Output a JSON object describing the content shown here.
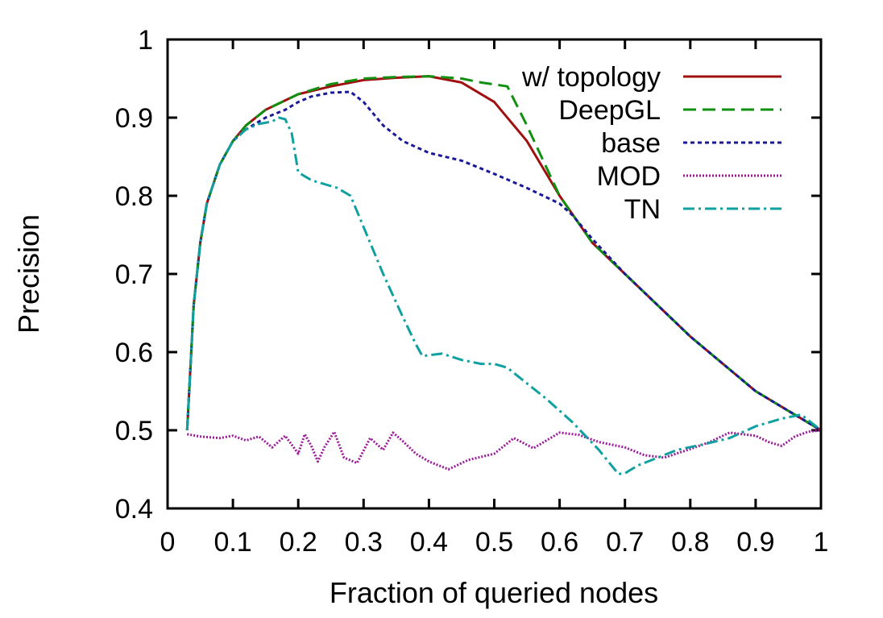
{
  "chart_data": {
    "type": "line",
    "title": "",
    "xlabel": "Fraction of queried nodes",
    "ylabel": "Precision",
    "xlim": [
      0,
      1
    ],
    "ylim": [
      0.4,
      1
    ],
    "xticks": [
      "0",
      "0.1",
      "0.2",
      "0.3",
      "0.4",
      "0.5",
      "0.6",
      "0.7",
      "0.8",
      "0.9",
      "1"
    ],
    "yticks": [
      "0.4",
      "0.5",
      "0.6",
      "0.7",
      "0.8",
      "0.9",
      "1"
    ],
    "grid": false,
    "legend_position": "top-right",
    "series": [
      {
        "name": "w/ topology",
        "color": "#a01010",
        "dash": "solid",
        "x": [
          0.03,
          0.04,
          0.05,
          0.06,
          0.08,
          0.1,
          0.12,
          0.15,
          0.2,
          0.25,
          0.3,
          0.35,
          0.4,
          0.45,
          0.5,
          0.55,
          0.6,
          0.65,
          0.7,
          0.75,
          0.8,
          0.85,
          0.9,
          0.95,
          1.0
        ],
        "y": [
          0.5,
          0.66,
          0.74,
          0.79,
          0.84,
          0.87,
          0.89,
          0.91,
          0.93,
          0.94,
          0.948,
          0.951,
          0.953,
          0.945,
          0.92,
          0.87,
          0.8,
          0.74,
          0.7,
          0.66,
          0.62,
          0.585,
          0.55,
          0.525,
          0.5
        ]
      },
      {
        "name": "DeepGL",
        "color": "#109010",
        "dash": "long-dash",
        "x": [
          0.03,
          0.04,
          0.05,
          0.06,
          0.08,
          0.1,
          0.12,
          0.15,
          0.2,
          0.25,
          0.3,
          0.35,
          0.4,
          0.45,
          0.48,
          0.52,
          0.55,
          0.6,
          0.65,
          0.7,
          0.75,
          0.8,
          0.85,
          0.9,
          0.95,
          1.0
        ],
        "y": [
          0.5,
          0.66,
          0.74,
          0.79,
          0.84,
          0.87,
          0.89,
          0.91,
          0.93,
          0.943,
          0.95,
          0.952,
          0.953,
          0.95,
          0.945,
          0.94,
          0.89,
          0.8,
          0.74,
          0.7,
          0.66,
          0.62,
          0.585,
          0.55,
          0.525,
          0.5
        ]
      },
      {
        "name": "base",
        "color": "#1a1a99",
        "dash": "short-dash",
        "x": [
          0.03,
          0.04,
          0.05,
          0.06,
          0.08,
          0.1,
          0.12,
          0.15,
          0.18,
          0.2,
          0.22,
          0.25,
          0.28,
          0.3,
          0.33,
          0.36,
          0.4,
          0.45,
          0.5,
          0.55,
          0.6,
          0.62,
          0.65,
          0.7,
          0.75,
          0.8,
          0.85,
          0.9,
          0.95,
          1.0
        ],
        "y": [
          0.5,
          0.66,
          0.74,
          0.79,
          0.84,
          0.87,
          0.885,
          0.9,
          0.91,
          0.92,
          0.927,
          0.932,
          0.933,
          0.92,
          0.89,
          0.87,
          0.855,
          0.845,
          0.828,
          0.81,
          0.79,
          0.775,
          0.745,
          0.7,
          0.66,
          0.62,
          0.585,
          0.55,
          0.525,
          0.5
        ]
      },
      {
        "name": "MOD",
        "color": "#9a1a9a",
        "dash": "dotted",
        "x": [
          0.03,
          0.05,
          0.08,
          0.1,
          0.12,
          0.14,
          0.16,
          0.18,
          0.2,
          0.21,
          0.22,
          0.23,
          0.24,
          0.255,
          0.27,
          0.29,
          0.31,
          0.33,
          0.345,
          0.36,
          0.38,
          0.4,
          0.43,
          0.46,
          0.5,
          0.53,
          0.56,
          0.6,
          0.63,
          0.66,
          0.7,
          0.73,
          0.76,
          0.8,
          0.83,
          0.86,
          0.88,
          0.9,
          0.92,
          0.94,
          0.96,
          0.98,
          1.0
        ],
        "y": [
          0.495,
          0.492,
          0.49,
          0.493,
          0.487,
          0.492,
          0.478,
          0.493,
          0.47,
          0.495,
          0.48,
          0.46,
          0.478,
          0.498,
          0.465,
          0.458,
          0.49,
          0.475,
          0.497,
          0.486,
          0.47,
          0.46,
          0.45,
          0.462,
          0.47,
          0.49,
          0.477,
          0.497,
          0.494,
          0.485,
          0.478,
          0.468,
          0.465,
          0.476,
          0.485,
          0.497,
          0.495,
          0.493,
          0.485,
          0.48,
          0.492,
          0.498,
          0.5
        ]
      },
      {
        "name": "TN",
        "color": "#10a0a0",
        "dash": "dash-dot",
        "x": [
          0.03,
          0.04,
          0.05,
          0.06,
          0.08,
          0.1,
          0.12,
          0.14,
          0.16,
          0.17,
          0.18,
          0.19,
          0.2,
          0.21,
          0.22,
          0.24,
          0.26,
          0.28,
          0.3,
          0.33,
          0.36,
          0.38,
          0.39,
          0.42,
          0.45,
          0.48,
          0.5,
          0.52,
          0.55,
          0.58,
          0.62,
          0.66,
          0.69,
          0.7,
          0.72,
          0.75,
          0.78,
          0.82,
          0.86,
          0.9,
          0.94,
          0.97,
          1.0
        ],
        "y": [
          0.5,
          0.66,
          0.74,
          0.79,
          0.84,
          0.87,
          0.885,
          0.892,
          0.895,
          0.9,
          0.898,
          0.88,
          0.83,
          0.825,
          0.82,
          0.815,
          0.81,
          0.8,
          0.76,
          0.7,
          0.645,
          0.61,
          0.595,
          0.598,
          0.59,
          0.585,
          0.585,
          0.58,
          0.56,
          0.54,
          0.51,
          0.475,
          0.444,
          0.445,
          0.455,
          0.465,
          0.475,
          0.482,
          0.49,
          0.505,
          0.515,
          0.52,
          0.5
        ]
      }
    ]
  }
}
